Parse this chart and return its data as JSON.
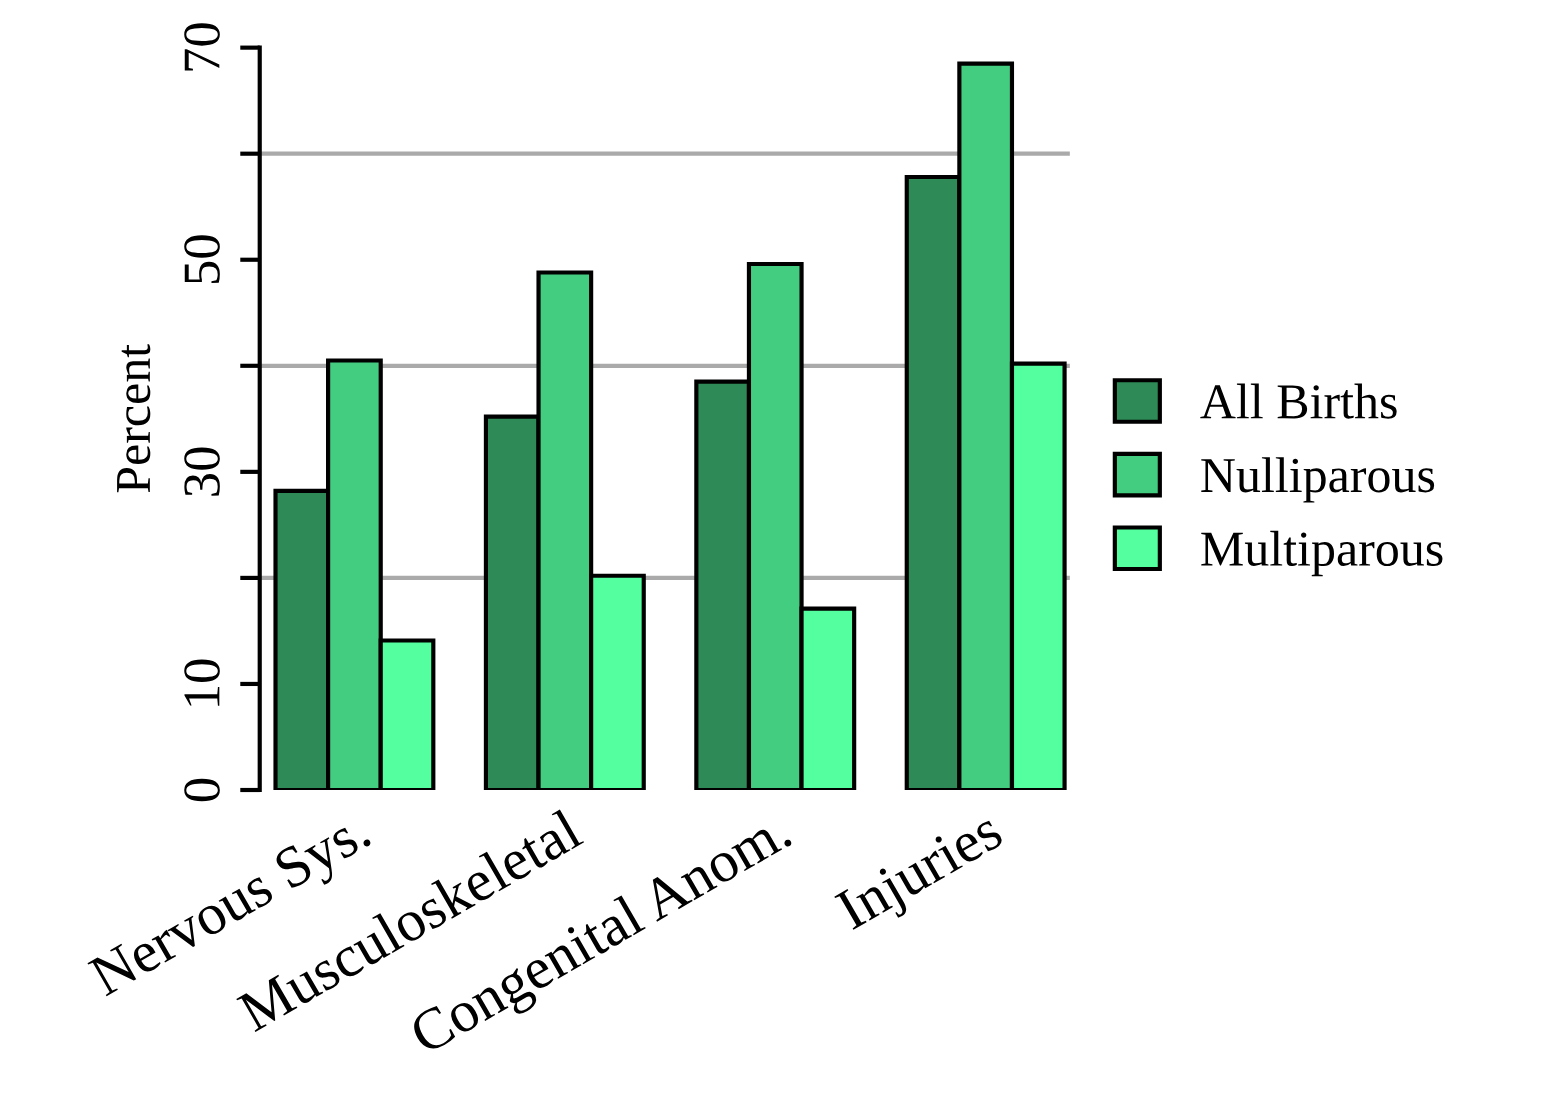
{
  "chart_data": {
    "type": "bar",
    "ylabel": "Percent",
    "categories": [
      "Nervous Sys.",
      "Musculoskeletal",
      "Congenital Anom.",
      "Injuries"
    ],
    "series": [
      {
        "name": "All Births",
        "color": "#2e8b57",
        "values": [
          28.2,
          35.2,
          38.5,
          57.8
        ]
      },
      {
        "name": "Nulliparous",
        "color": "#43cd80",
        "values": [
          40.5,
          48.8,
          49.6,
          68.5
        ]
      },
      {
        "name": "Multiparous",
        "color": "#54ff9f",
        "values": [
          14.1,
          20.2,
          17.1,
          40.2
        ]
      }
    ],
    "ylim": [
      0,
      70
    ],
    "yticks": [
      0,
      10,
      {
        "value": 20,
        "label": null
      },
      30,
      {
        "value": 40,
        "label": null
      },
      50,
      {
        "value": 60,
        "label": null
      },
      70
    ],
    "ref_lines": [
      {
        "axis": "y",
        "value": 20,
        "color": "#aaaaaa"
      },
      {
        "axis": "y",
        "value": 40,
        "color": "#aaaaaa"
      },
      {
        "axis": "y",
        "value": 60,
        "color": "#aaaaaa"
      }
    ],
    "grid": false,
    "legend": "right"
  }
}
